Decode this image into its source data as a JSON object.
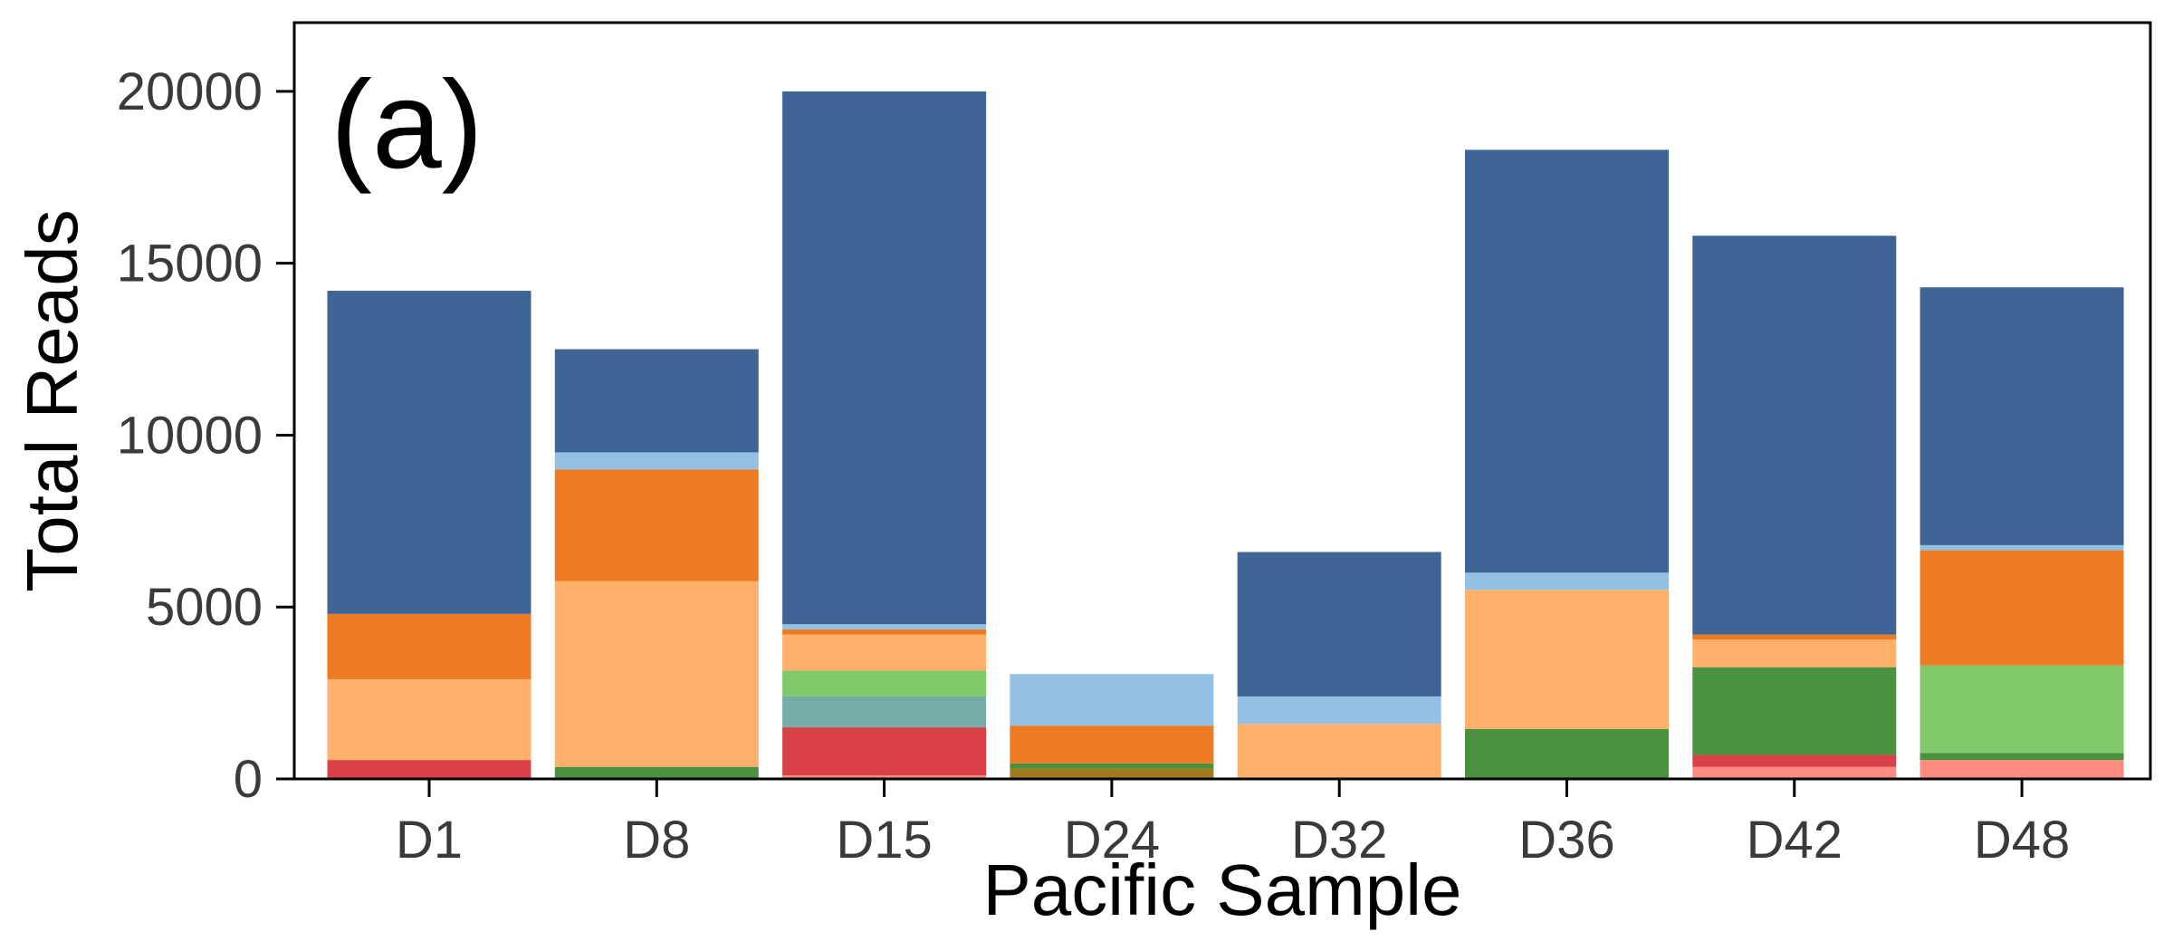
{
  "chart_data": {
    "type": "bar",
    "stacked": true,
    "annotation": "(a)",
    "xlabel": "Pacific Sample",
    "ylabel": "Total Reads",
    "ylim": [
      0,
      22000
    ],
    "yticks": [
      "0",
      "5000",
      "10000",
      "15000",
      "20000"
    ],
    "grid": false,
    "legend": "none",
    "categories": [
      "D1",
      "D8",
      "D15",
      "D24",
      "D32",
      "D36",
      "D42",
      "D48"
    ],
    "series": [
      {
        "color": "#ff8a80",
        "values": [
          0,
          0,
          100,
          0,
          0,
          0,
          350,
          550
        ]
      },
      {
        "color": "#d94048",
        "values": [
          550,
          0,
          1400,
          0,
          0,
          0,
          350,
          0
        ]
      },
      {
        "color": "#76ada6",
        "values": [
          0,
          0,
          900,
          0,
          0,
          0,
          0,
          0
        ]
      },
      {
        "color": "#a37a1c",
        "values": [
          0,
          0,
          0,
          300,
          0,
          0,
          0,
          0
        ]
      },
      {
        "color": "#4a9140",
        "values": [
          0,
          350,
          0,
          150,
          0,
          1450,
          2550,
          200
        ]
      },
      {
        "color": "#7fc96b",
        "values": [
          0,
          0,
          750,
          0,
          0,
          0,
          0,
          2550
        ]
      },
      {
        "color": "#ffb06a",
        "values": [
          2350,
          5400,
          1050,
          0,
          1600,
          4050,
          800,
          0
        ]
      },
      {
        "color": "#ec7b24",
        "values": [
          1900,
          3250,
          150,
          1100,
          0,
          0,
          150,
          3350
        ]
      },
      {
        "color": "#93c0e3",
        "values": [
          0,
          500,
          150,
          1500,
          800,
          500,
          0,
          150
        ]
      },
      {
        "color": "#3e6596",
        "values": [
          9400,
          3000,
          15500,
          0,
          4200,
          12300,
          11600,
          7500
        ]
      }
    ]
  }
}
